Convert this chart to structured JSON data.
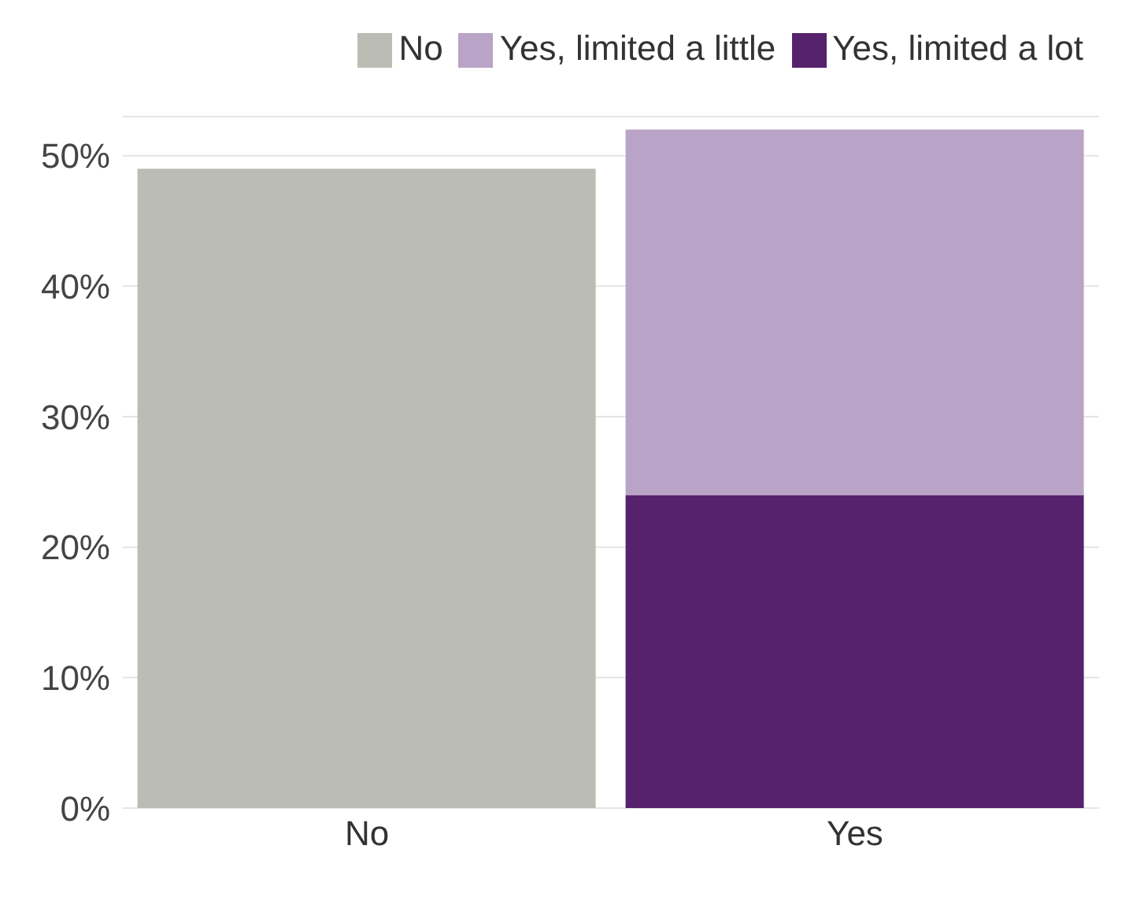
{
  "chart_data": {
    "type": "bar",
    "stacked": true,
    "categories": [
      "No",
      "Yes"
    ],
    "series": [
      {
        "name": "No",
        "color": "#bbbcb4",
        "values": [
          49,
          null
        ]
      },
      {
        "name": "Yes, limited a lot",
        "color": "#56226e",
        "values": [
          null,
          24
        ]
      },
      {
        "name": "Yes, limited a little",
        "color": "#b9a3c6",
        "values": [
          null,
          28
        ]
      }
    ],
    "ylim": [
      0,
      53
    ],
    "yticks": [
      {
        "value": 0,
        "label": "0%"
      },
      {
        "value": 10,
        "label": "10%"
      },
      {
        "value": 20,
        "label": "20%"
      },
      {
        "value": 30,
        "label": "30%"
      },
      {
        "value": 40,
        "label": "40%"
      },
      {
        "value": 50,
        "label": "50%"
      }
    ],
    "grid": "y",
    "legend": "top right"
  }
}
